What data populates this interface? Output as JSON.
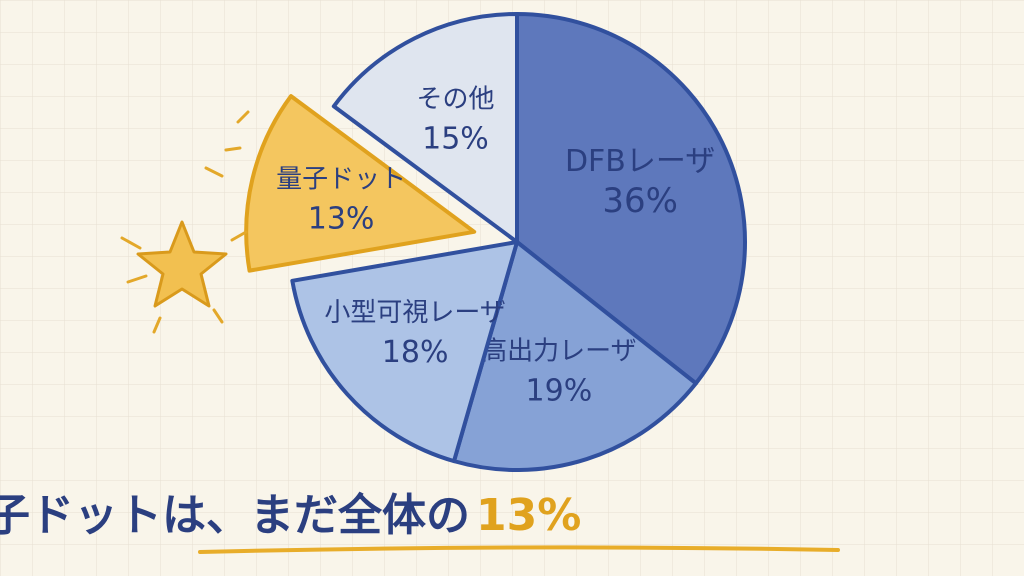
{
  "chart_data": {
    "type": "pie",
    "categories": [
      "DFBレーザ",
      "高出力レーザ",
      "小型可視レーザ",
      "量子ドット",
      "その他"
    ],
    "values": [
      36,
      19,
      18,
      13,
      15
    ],
    "value_labels": [
      "36%",
      "19%",
      "18%",
      "13%",
      "15%"
    ],
    "colors": [
      "#5e78bc",
      "#86a2d6",
      "#adc3e6",
      "#f4c65f",
      "#dfe5ef"
    ],
    "explode": [
      false,
      false,
      false,
      true,
      false
    ],
    "title": "量子ドットは、まだ全体の",
    "title_highlight": "13%"
  }
}
